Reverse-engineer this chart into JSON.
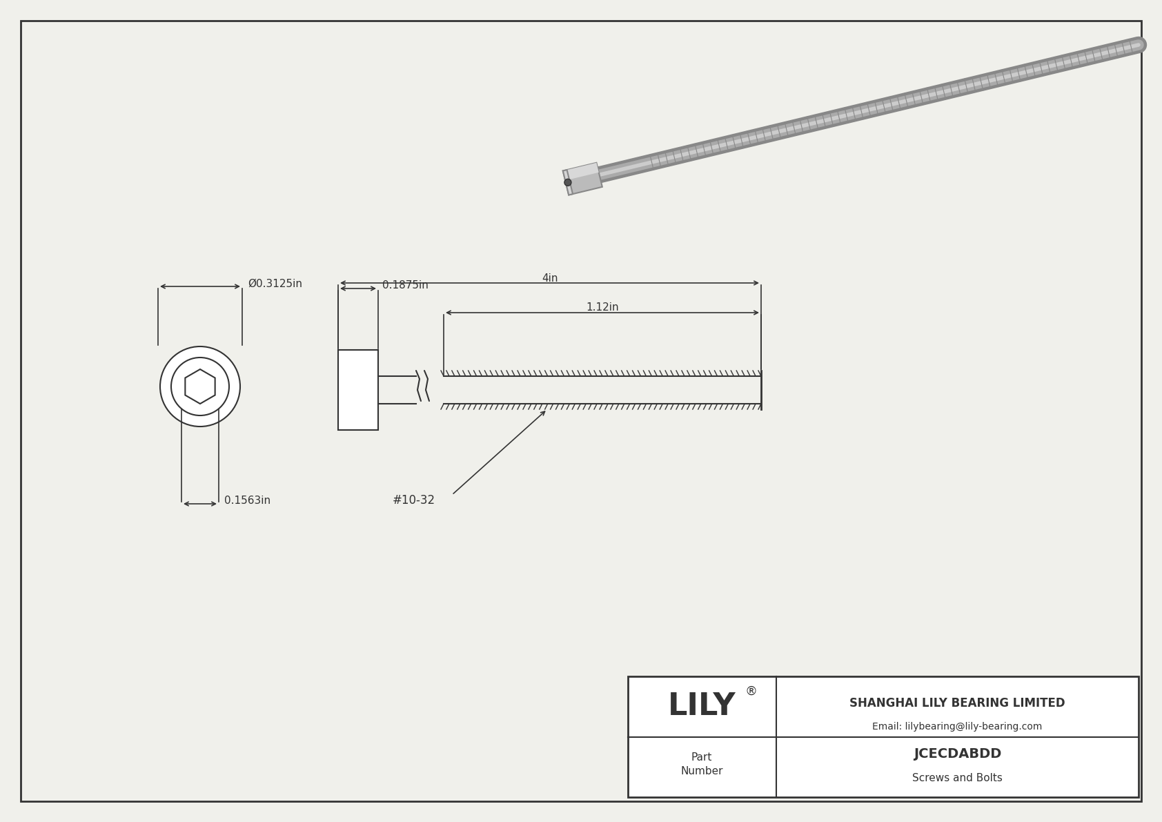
{
  "bg_color": "#f0f0eb",
  "line_color": "#333333",
  "title": "JCECDABDD",
  "subtitle": "Screws and Bolts",
  "company": "SHANGHAI LILY BEARING LIMITED",
  "email": "Email: lilybearing@lily-bearing.com",
  "part_label": "Part\nNumber",
  "dim_head_width": "0.3125in",
  "dim_head_height": "0.1875in",
  "dim_total_length": "4in",
  "dim_thread_length": "1.12in",
  "dim_socket_dia": "0.1563in",
  "thread_label": "#10-32"
}
